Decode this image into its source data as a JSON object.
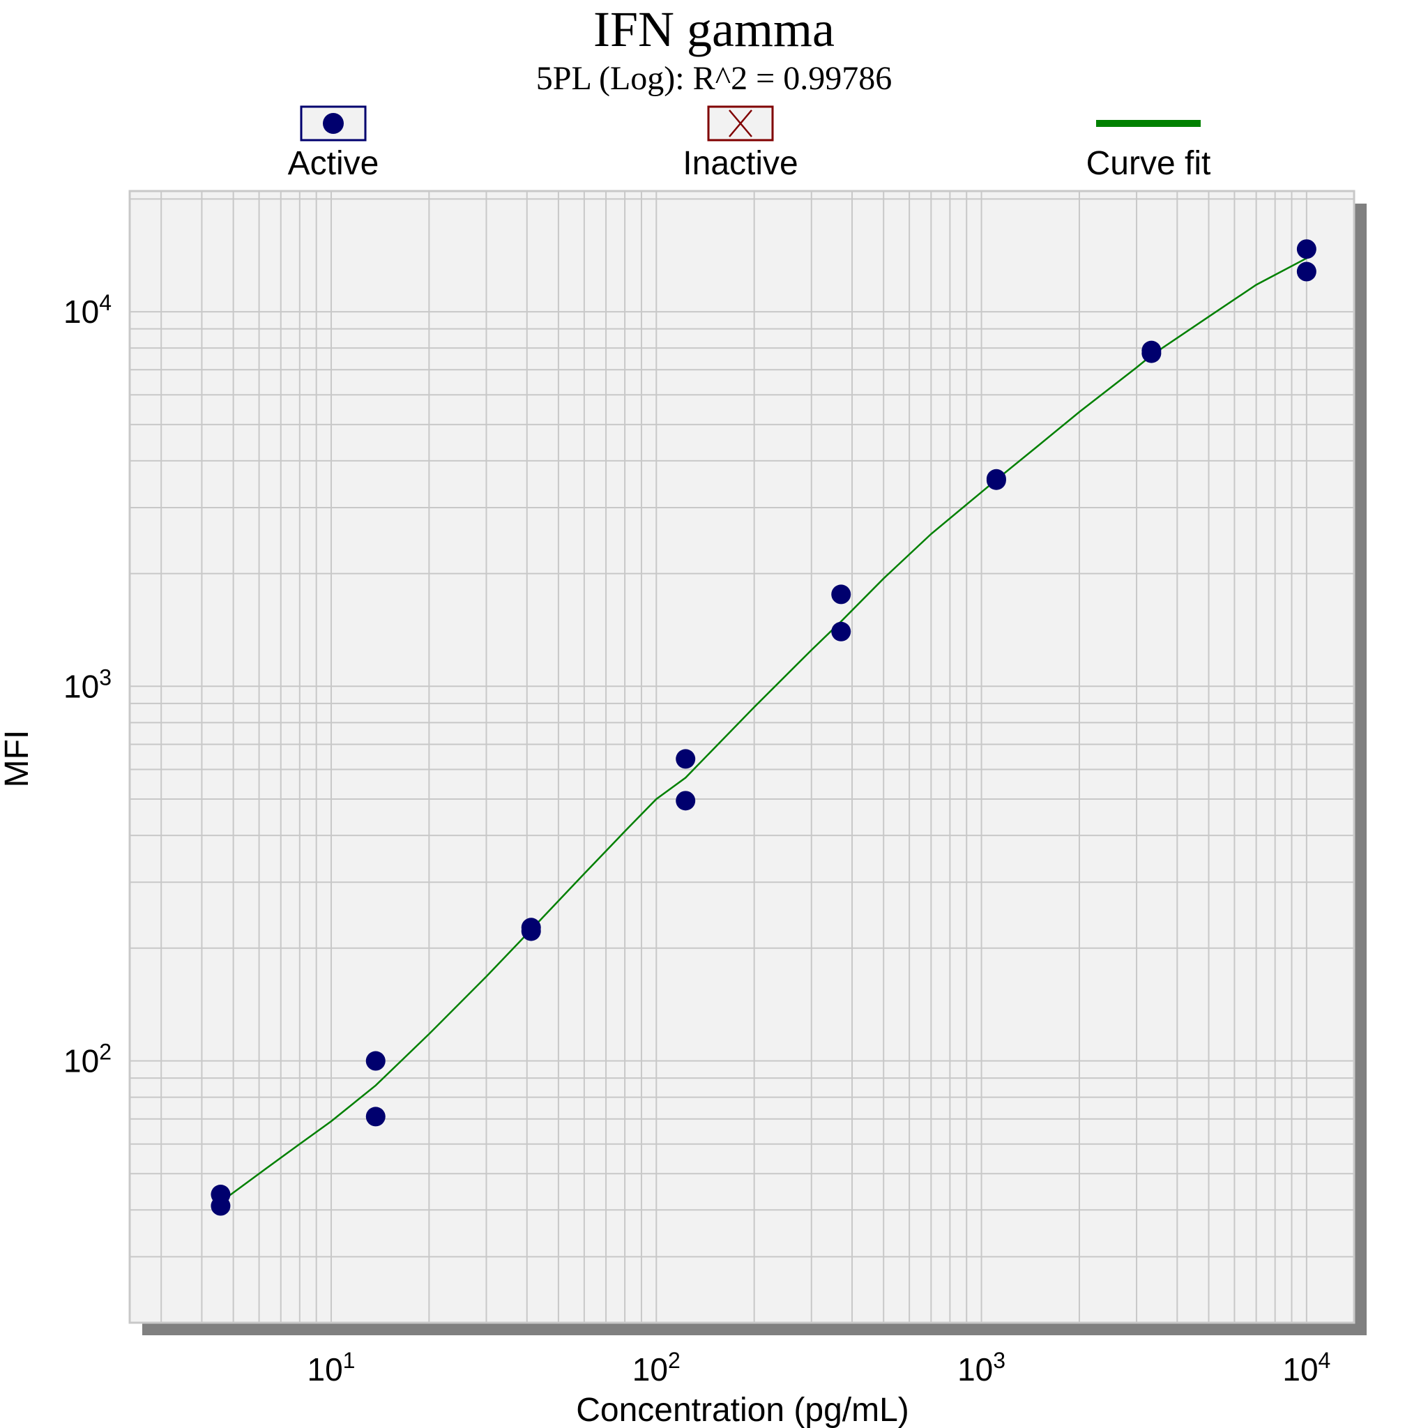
{
  "chart_data": {
    "type": "scatter",
    "title": "IFN gamma",
    "subtitle": "5PL (Log): R^2 = 0.99786",
    "xlabel": "Concentration (pg/mL)",
    "ylabel": "MFI",
    "xscale": "log",
    "yscale": "log",
    "xlim": [
      2.4,
      14000
    ],
    "ylim": [
      20,
      21000
    ],
    "grid": true,
    "legend_position": "top",
    "x_tick_labels": [
      {
        "base": "10",
        "exp": "1",
        "value": 10
      },
      {
        "base": "10",
        "exp": "2",
        "value": 100
      },
      {
        "base": "10",
        "exp": "3",
        "value": 1000
      },
      {
        "base": "10",
        "exp": "4",
        "value": 10000
      }
    ],
    "y_tick_labels": [
      {
        "base": "10",
        "exp": "2",
        "value": 100
      },
      {
        "base": "10",
        "exp": "3",
        "value": 1000
      },
      {
        "base": "10",
        "exp": "4",
        "value": 10000
      }
    ],
    "legend": [
      {
        "label": "Active",
        "marker": "filled-circle"
      },
      {
        "label": "Inactive",
        "marker": "x-box"
      },
      {
        "label": "Curve fit",
        "marker": "line"
      }
    ],
    "series": [
      {
        "name": "Active",
        "points": [
          {
            "x": 4.57,
            "y": 44
          },
          {
            "x": 4.57,
            "y": 41
          },
          {
            "x": 13.7,
            "y": 100
          },
          {
            "x": 13.7,
            "y": 71
          },
          {
            "x": 41.2,
            "y": 227
          },
          {
            "x": 41.2,
            "y": 222
          },
          {
            "x": 123,
            "y": 640
          },
          {
            "x": 123,
            "y": 495
          },
          {
            "x": 370,
            "y": 1760
          },
          {
            "x": 370,
            "y": 1400
          },
          {
            "x": 1111,
            "y": 3580
          },
          {
            "x": 1111,
            "y": 3550
          },
          {
            "x": 3333,
            "y": 7880
          },
          {
            "x": 3333,
            "y": 7750
          },
          {
            "x": 10000,
            "y": 14700
          },
          {
            "x": 10000,
            "y": 12800
          }
        ]
      },
      {
        "name": "Inactive",
        "points": []
      },
      {
        "name": "Curve fit",
        "points": [
          {
            "x": 4.57,
            "y": 42
          },
          {
            "x": 6,
            "y": 50
          },
          {
            "x": 8,
            "y": 60
          },
          {
            "x": 10,
            "y": 69
          },
          {
            "x": 13.7,
            "y": 86
          },
          {
            "x": 20,
            "y": 118
          },
          {
            "x": 30,
            "y": 168
          },
          {
            "x": 41.2,
            "y": 224
          },
          {
            "x": 60,
            "y": 316
          },
          {
            "x": 80,
            "y": 410
          },
          {
            "x": 100,
            "y": 500
          },
          {
            "x": 123,
            "y": 570
          },
          {
            "x": 200,
            "y": 880
          },
          {
            "x": 300,
            "y": 1250
          },
          {
            "x": 370,
            "y": 1490
          },
          {
            "x": 500,
            "y": 1940
          },
          {
            "x": 700,
            "y": 2550
          },
          {
            "x": 1000,
            "y": 3300
          },
          {
            "x": 1111,
            "y": 3560
          },
          {
            "x": 1500,
            "y": 4400
          },
          {
            "x": 2000,
            "y": 5400
          },
          {
            "x": 3000,
            "y": 7100
          },
          {
            "x": 3333,
            "y": 7650
          },
          {
            "x": 5000,
            "y": 9700
          },
          {
            "x": 7000,
            "y": 11800
          },
          {
            "x": 10000,
            "y": 13900
          }
        ]
      }
    ]
  },
  "colors": {
    "background": "#ffffff",
    "plot_background": "#f2f2f2",
    "grid": "#c8c8c8",
    "shadow": "#808080",
    "active_marker": "#00006e",
    "inactive_border": "#800000",
    "curve": "#008000"
  }
}
